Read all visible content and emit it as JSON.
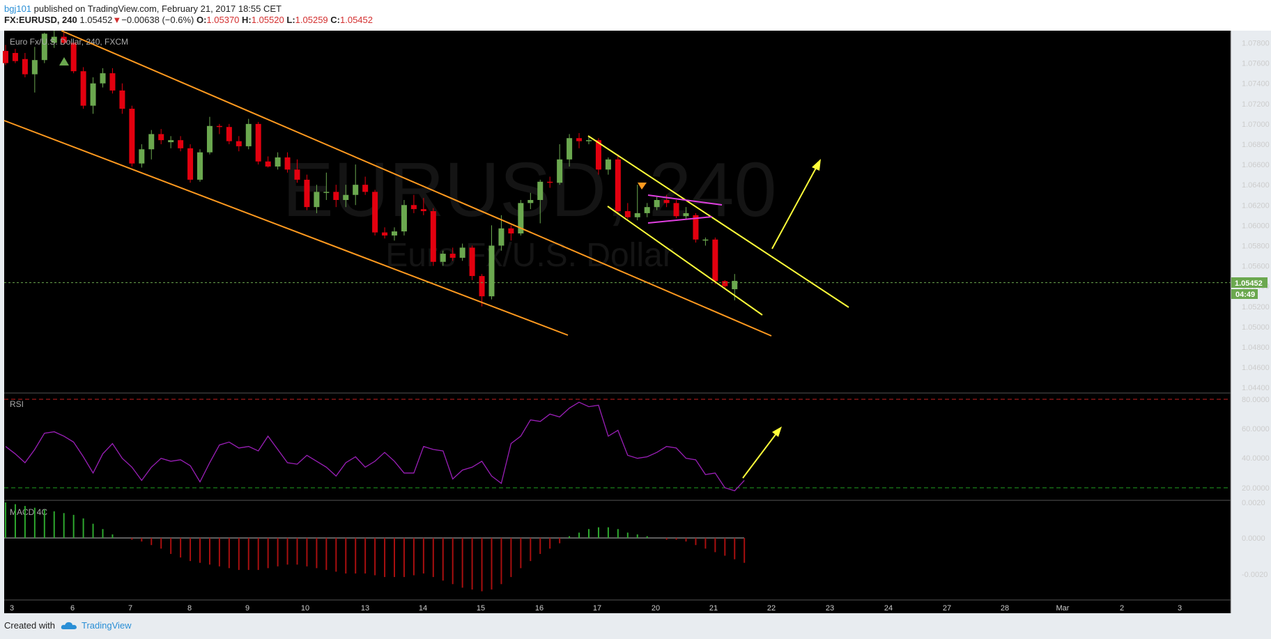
{
  "header": {
    "author": "bgj101",
    "published_text": "published on TradingView.com, February 21, 2017 18:55 CET",
    "symbol": "FX:EURUSD, 240",
    "last_price": "1.05452",
    "change_arrow": "▼",
    "change": "−0.00638 (−0.6%)",
    "open_label": "O:",
    "open": "1.05370",
    "high_label": "H:",
    "high": "1.05520",
    "low_label": "L:",
    "low": "1.05259",
    "close_label": "C:",
    "close": "1.05452"
  },
  "colors": {
    "background": "#000000",
    "up_candle": "#6ba84f",
    "down_candle": "#e3000f",
    "channel": "#ff9a1f",
    "wedge": "#ffff3a",
    "pennant": "#e040e0",
    "rsi_line": "#9b1fb8",
    "macd_up": "#2ea82e",
    "macd_down": "#a80f0f",
    "price_label": "#6ba84f",
    "accent": "#2a8fd6"
  },
  "main_pane": {
    "title": "Euro Fx/U.S. Dollar, 240, FXCM",
    "watermark_symbol": "EURUSD, 240",
    "watermark_name": "Euro Fx/U.S. Dollar",
    "price_label": "1.05452",
    "countdown": "04:49"
  },
  "rsi_pane": {
    "title": "RSI",
    "levels": [
      "80.0000",
      "60.0000",
      "40.0000",
      "20.0000"
    ]
  },
  "macd_pane": {
    "title": "MACD 4C",
    "levels": [
      "0.0020",
      "0.0000",
      "-0.0020"
    ]
  },
  "footer": {
    "created_with": "Created with",
    "brand": "TradingView"
  },
  "chart_data": [
    {
      "type": "candlestick",
      "title": "Euro Fx/U.S. Dollar, 240, FXCM",
      "y_ticks": [
        "1.07800",
        "1.07600",
        "1.07400",
        "1.07200",
        "1.07000",
        "1.06800",
        "1.06600",
        "1.06400",
        "1.06200",
        "1.06000",
        "1.05800",
        "1.05600",
        "1.05400",
        "1.05200",
        "1.05000",
        "1.04800",
        "1.04600",
        "1.04400"
      ],
      "ylim": [
        1.0436,
        1.0792
      ],
      "x_ticks": [
        "3",
        "6",
        "7",
        "8",
        "9",
        "10",
        "13",
        "14",
        "15",
        "16",
        "17",
        "20",
        "21",
        "22",
        "23",
        "24",
        "27",
        "28",
        "Mar",
        "2",
        "3"
      ],
      "last_price": 1.05452,
      "candles": [
        {
          "o": 1.0772,
          "h": 1.0778,
          "l": 1.0758,
          "c": 1.076
        },
        {
          "o": 1.077,
          "h": 1.0774,
          "l": 1.076,
          "c": 1.0762
        },
        {
          "o": 1.0764,
          "h": 1.077,
          "l": 1.0746,
          "c": 1.0749
        },
        {
          "o": 1.0749,
          "h": 1.0776,
          "l": 1.0731,
          "c": 1.0763
        },
        {
          "o": 1.0763,
          "h": 1.079,
          "l": 1.076,
          "c": 1.0789
        },
        {
          "o": 1.078,
          "h": 1.0792,
          "l": 1.0775,
          "c": 1.0786
        },
        {
          "o": 1.0786,
          "h": 1.079,
          "l": 1.0778,
          "c": 1.078
        },
        {
          "o": 1.078,
          "h": 1.0782,
          "l": 1.075,
          "c": 1.0752
        },
        {
          "o": 1.0752,
          "h": 1.0756,
          "l": 1.0715,
          "c": 1.0718
        },
        {
          "o": 1.0718,
          "h": 1.0746,
          "l": 1.071,
          "c": 1.074
        },
        {
          "o": 1.074,
          "h": 1.0755,
          "l": 1.0736,
          "c": 1.075
        },
        {
          "o": 1.075,
          "h": 1.0755,
          "l": 1.073,
          "c": 1.0733
        },
        {
          "o": 1.0733,
          "h": 1.074,
          "l": 1.071,
          "c": 1.0715
        },
        {
          "o": 1.0715,
          "h": 1.0718,
          "l": 1.0658,
          "c": 1.0661
        },
        {
          "o": 1.0661,
          "h": 1.068,
          "l": 1.0657,
          "c": 1.0675
        },
        {
          "o": 1.0675,
          "h": 1.0694,
          "l": 1.0665,
          "c": 1.069
        },
        {
          "o": 1.069,
          "h": 1.0695,
          "l": 1.068,
          "c": 1.0684
        },
        {
          "o": 1.0682,
          "h": 1.0688,
          "l": 1.0676,
          "c": 1.0684
        },
        {
          "o": 1.0684,
          "h": 1.0688,
          "l": 1.0673,
          "c": 1.0676
        },
        {
          "o": 1.0676,
          "h": 1.068,
          "l": 1.0642,
          "c": 1.0645
        },
        {
          "o": 1.0645,
          "h": 1.0675,
          "l": 1.0643,
          "c": 1.0672
        },
        {
          "o": 1.0672,
          "h": 1.0707,
          "l": 1.067,
          "c": 1.0698
        },
        {
          "o": 1.0698,
          "h": 1.07,
          "l": 1.069,
          "c": 1.0697
        },
        {
          "o": 1.0697,
          "h": 1.07,
          "l": 1.068,
          "c": 1.0683
        },
        {
          "o": 1.0683,
          "h": 1.0688,
          "l": 1.0673,
          "c": 1.0678
        },
        {
          "o": 1.0678,
          "h": 1.0705,
          "l": 1.0675,
          "c": 1.07
        },
        {
          "o": 1.07,
          "h": 1.0702,
          "l": 1.066,
          "c": 1.0663
        },
        {
          "o": 1.0663,
          "h": 1.0668,
          "l": 1.0657,
          "c": 1.0658
        },
        {
          "o": 1.0658,
          "h": 1.0672,
          "l": 1.0655,
          "c": 1.0667
        },
        {
          "o": 1.0667,
          "h": 1.0672,
          "l": 1.0652,
          "c": 1.0655
        },
        {
          "o": 1.0655,
          "h": 1.0665,
          "l": 1.0642,
          "c": 1.0645
        },
        {
          "o": 1.0645,
          "h": 1.065,
          "l": 1.0615,
          "c": 1.0618
        },
        {
          "o": 1.0618,
          "h": 1.064,
          "l": 1.0612,
          "c": 1.0633
        },
        {
          "o": 1.0633,
          "h": 1.0652,
          "l": 1.0625,
          "c": 1.0633
        },
        {
          "o": 1.0633,
          "h": 1.064,
          "l": 1.0618,
          "c": 1.0625
        },
        {
          "o": 1.0625,
          "h": 1.064,
          "l": 1.0618,
          "c": 1.063
        },
        {
          "o": 1.063,
          "h": 1.066,
          "l": 1.062,
          "c": 1.064
        },
        {
          "o": 1.064,
          "h": 1.0648,
          "l": 1.063,
          "c": 1.0633
        },
        {
          "o": 1.0633,
          "h": 1.0635,
          "l": 1.059,
          "c": 1.0593
        },
        {
          "o": 1.0593,
          "h": 1.0598,
          "l": 1.0587,
          "c": 1.059
        },
        {
          "o": 1.059,
          "h": 1.0598,
          "l": 1.0585,
          "c": 1.0594
        },
        {
          "o": 1.0594,
          "h": 1.0625,
          "l": 1.059,
          "c": 1.062
        },
        {
          "o": 1.062,
          "h": 1.063,
          "l": 1.0612,
          "c": 1.0616
        },
        {
          "o": 1.0616,
          "h": 1.0627,
          "l": 1.061,
          "c": 1.0614
        },
        {
          "o": 1.0614,
          "h": 1.0617,
          "l": 1.056,
          "c": 1.0564
        },
        {
          "o": 1.0564,
          "h": 1.0575,
          "l": 1.056,
          "c": 1.0572
        },
        {
          "o": 1.0572,
          "h": 1.0578,
          "l": 1.0565,
          "c": 1.0568
        },
        {
          "o": 1.0568,
          "h": 1.0582,
          "l": 1.0565,
          "c": 1.0578
        },
        {
          "o": 1.0578,
          "h": 1.058,
          "l": 1.0546,
          "c": 1.055
        },
        {
          "o": 1.055,
          "h": 1.0552,
          "l": 1.052,
          "c": 1.053
        },
        {
          "o": 1.053,
          "h": 1.06,
          "l": 1.0527,
          "c": 1.058
        },
        {
          "o": 1.058,
          "h": 1.061,
          "l": 1.0575,
          "c": 1.0597
        },
        {
          "o": 1.0597,
          "h": 1.06,
          "l": 1.0585,
          "c": 1.0592
        },
        {
          "o": 1.0592,
          "h": 1.0625,
          "l": 1.059,
          "c": 1.0622
        },
        {
          "o": 1.0622,
          "h": 1.0632,
          "l": 1.0616,
          "c": 1.0625
        },
        {
          "o": 1.0625,
          "h": 1.0645,
          "l": 1.0602,
          "c": 1.0643
        },
        {
          "o": 1.0643,
          "h": 1.0648,
          "l": 1.0637,
          "c": 1.0642
        },
        {
          "o": 1.0642,
          "h": 1.068,
          "l": 1.064,
          "c": 1.0665
        },
        {
          "o": 1.0665,
          "h": 1.069,
          "l": 1.0658,
          "c": 1.0686
        },
        {
          "o": 1.0686,
          "h": 1.0691,
          "l": 1.0676,
          "c": 1.0683
        },
        {
          "o": 1.0683,
          "h": 1.0688,
          "l": 1.068,
          "c": 1.0684
        },
        {
          "o": 1.0684,
          "h": 1.0686,
          "l": 1.065,
          "c": 1.0655
        },
        {
          "o": 1.0655,
          "h": 1.0667,
          "l": 1.065,
          "c": 1.0665
        },
        {
          "o": 1.0665,
          "h": 1.067,
          "l": 1.0612,
          "c": 1.0614
        },
        {
          "o": 1.0614,
          "h": 1.0622,
          "l": 1.0606,
          "c": 1.0608
        },
        {
          "o": 1.0608,
          "h": 1.064,
          "l": 1.0605,
          "c": 1.0612
        },
        {
          "o": 1.0612,
          "h": 1.0622,
          "l": 1.0608,
          "c": 1.0618
        },
        {
          "o": 1.0618,
          "h": 1.0628,
          "l": 1.0615,
          "c": 1.0625
        },
        {
          "o": 1.0625,
          "h": 1.063,
          "l": 1.0618,
          "c": 1.0622
        },
        {
          "o": 1.0622,
          "h": 1.0625,
          "l": 1.0607,
          "c": 1.0609
        },
        {
          "o": 1.0609,
          "h": 1.0618,
          "l": 1.0606,
          "c": 1.0612
        },
        {
          "o": 1.061,
          "h": 1.0612,
          "l": 1.0583,
          "c": 1.0586
        },
        {
          "o": 1.0586,
          "h": 1.0588,
          "l": 1.058,
          "c": 1.0586
        },
        {
          "o": 1.0586,
          "h": 1.0588,
          "l": 1.0542,
          "c": 1.0545
        },
        {
          "o": 1.0545,
          "h": 1.0546,
          "l": 1.0538,
          "c": 1.054
        },
        {
          "o": 1.0537,
          "h": 1.0552,
          "l": 1.0526,
          "c": 1.05452
        }
      ]
    },
    {
      "type": "line",
      "title": "RSI",
      "ylim": [
        0,
        100
      ],
      "levels": [
        80,
        20
      ],
      "values": [
        48,
        43,
        37,
        46,
        57,
        58,
        55,
        51,
        41,
        30,
        43,
        50,
        40,
        34,
        25,
        34,
        40,
        38,
        39,
        35,
        24,
        37,
        49,
        51,
        47,
        48,
        45,
        55,
        46,
        37,
        36,
        42,
        38,
        34,
        28,
        37,
        41,
        34,
        38,
        44,
        38,
        30,
        30,
        48,
        46,
        45,
        26,
        32,
        34,
        38,
        28,
        23,
        50,
        55,
        66,
        65,
        70,
        68,
        74,
        78,
        75,
        76,
        55,
        59,
        42,
        40,
        41,
        44,
        48,
        47,
        40,
        39,
        29,
        30,
        20,
        18,
        25
      ],
      "annotation": "arrow up"
    },
    {
      "type": "bar",
      "title": "MACD 4C",
      "ylim": [
        -0.0035,
        0.0024
      ],
      "values": [
        0.002,
        0.0019,
        0.0018,
        0.0017,
        0.0016,
        0.0015,
        0.0014,
        0.0013,
        0.0011,
        0.0008,
        0.0005,
        0.0002,
        0.0,
        -0.0001,
        -0.0002,
        -0.0004,
        -0.0006,
        -0.0009,
        -0.0011,
        -0.0013,
        -0.0014,
        -0.0015,
        -0.0016,
        -0.0017,
        -0.0018,
        -0.0018,
        -0.0018,
        -0.0017,
        -0.0016,
        -0.0015,
        -0.0015,
        -0.0016,
        -0.0017,
        -0.0018,
        -0.0019,
        -0.002,
        -0.002,
        -0.002,
        -0.0021,
        -0.0022,
        -0.0022,
        -0.0022,
        -0.0021,
        -0.002,
        -0.0022,
        -0.0024,
        -0.0026,
        -0.0028,
        -0.0029,
        -0.003,
        -0.0029,
        -0.0026,
        -0.0022,
        -0.0017,
        -0.0013,
        -0.0009,
        -0.0006,
        -0.0003,
        0.0001,
        0.0003,
        0.0005,
        0.0006,
        0.0006,
        0.0005,
        0.0003,
        0.0002,
        0.0001,
        0.0,
        -0.0001,
        -0.0001,
        -0.0002,
        -0.0004,
        -0.0006,
        -0.0008,
        -0.001,
        -0.0012,
        -0.0014
      ]
    }
  ]
}
